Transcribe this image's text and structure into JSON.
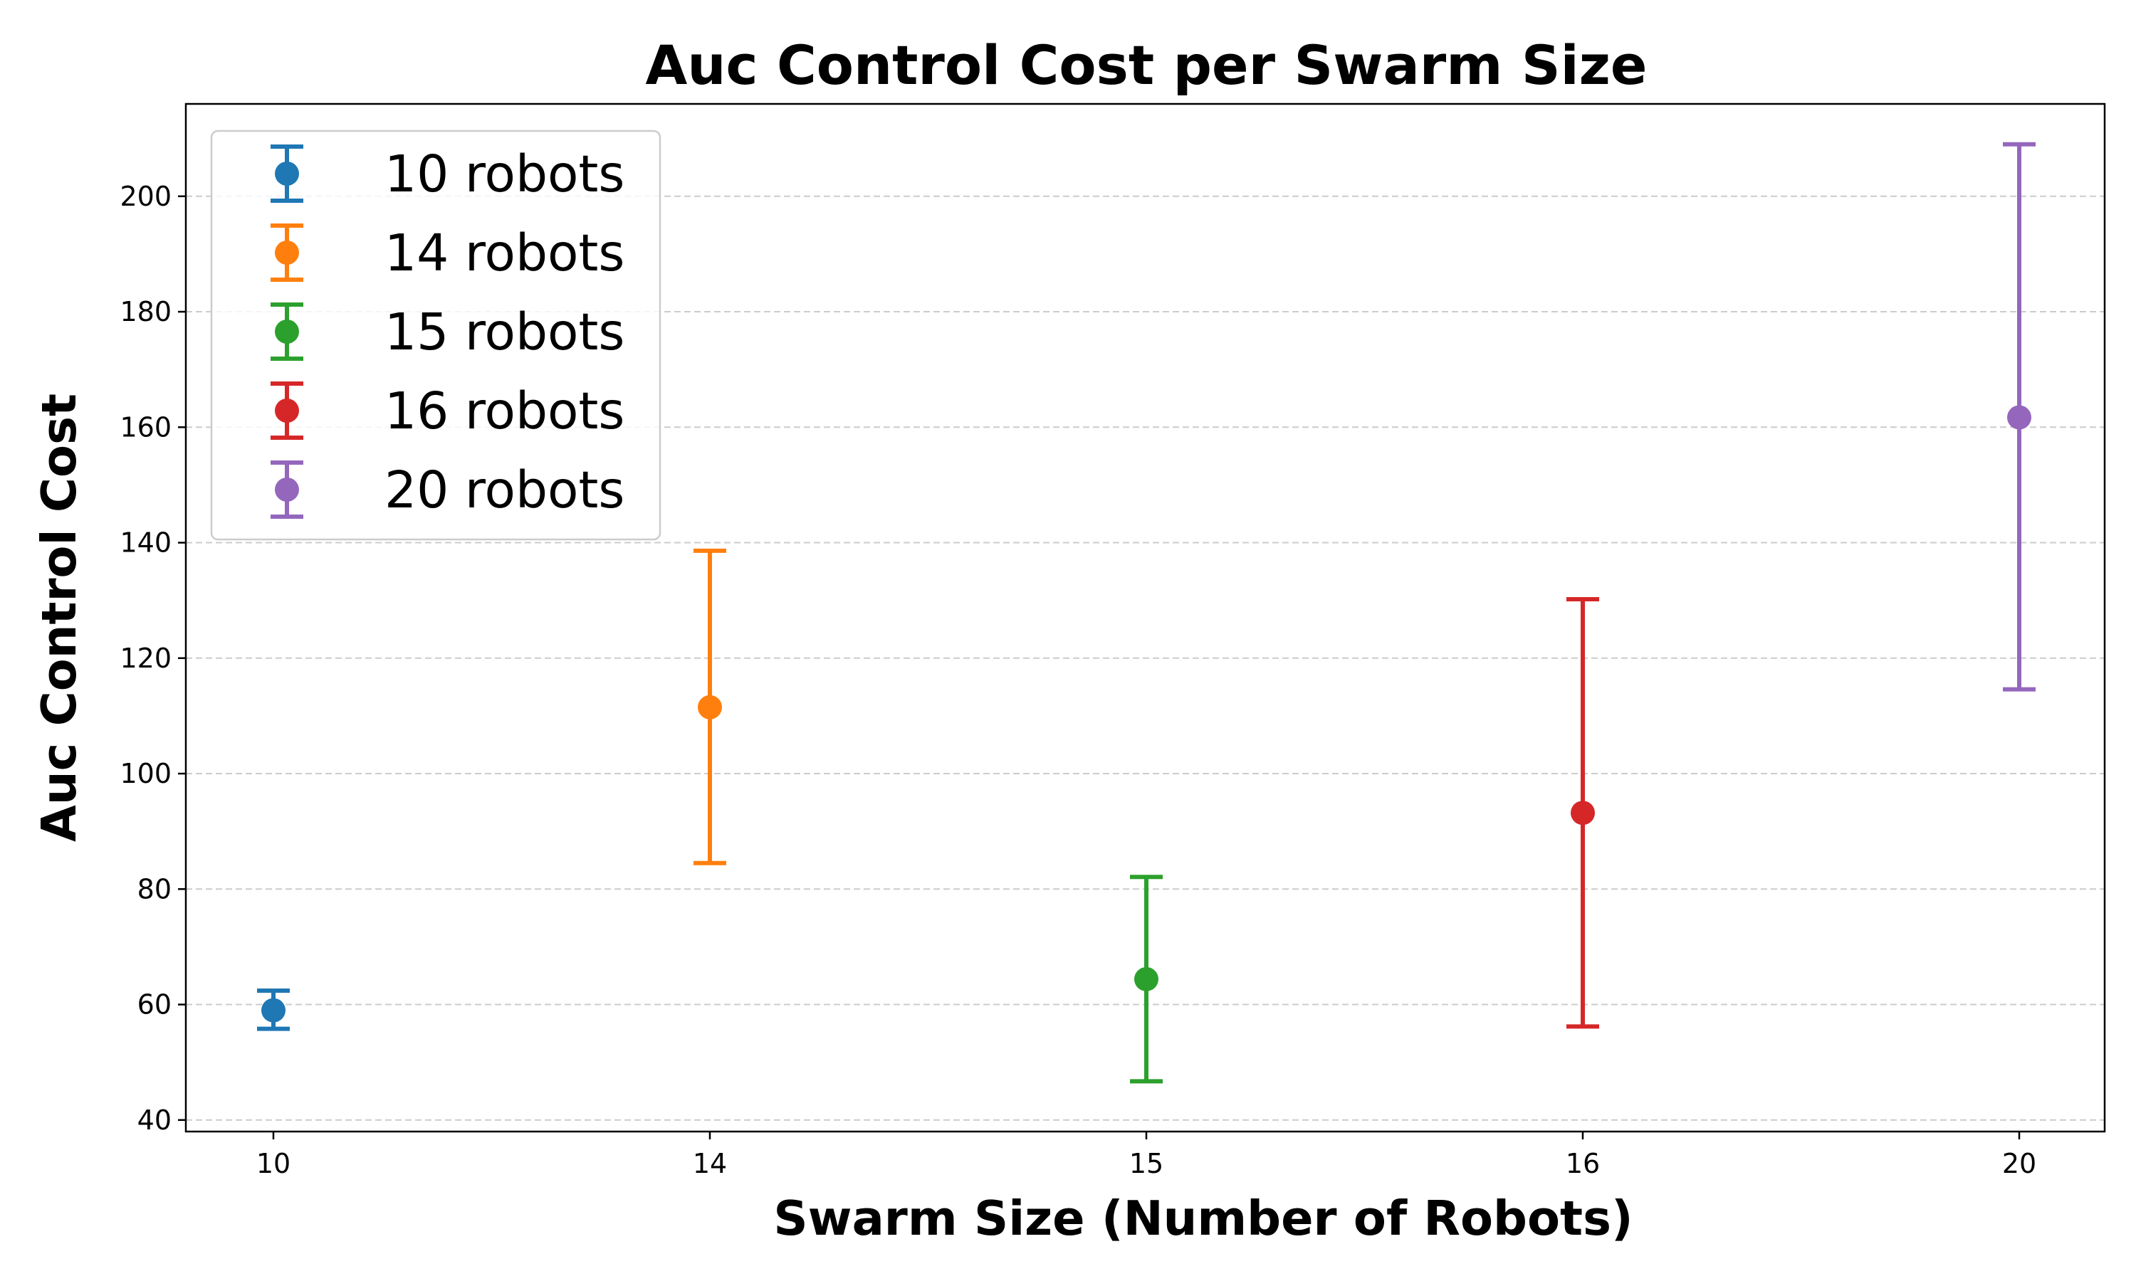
{
  "chart_data": {
    "type": "scatter",
    "title": "Auc Control Cost per Swarm Size",
    "xlabel": "Swarm Size (Number of Robots)",
    "ylabel": "Auc Control Cost",
    "categories": [
      "10",
      "14",
      "15",
      "16",
      "20"
    ],
    "ylim": [
      38,
      216
    ],
    "yticks": [
      40,
      60,
      80,
      100,
      120,
      140,
      160,
      180,
      200
    ],
    "grid": "y-dashed",
    "legend_position": "upper-left",
    "series": [
      {
        "name": "10 robots",
        "x": "10",
        "mean": 59,
        "err_low": 55.8,
        "err_high": 62.4,
        "color": "#1f77b4"
      },
      {
        "name": "14 robots",
        "x": "14",
        "mean": 111.5,
        "err_low": 84.5,
        "err_high": 138.6,
        "color": "#ff7f0e"
      },
      {
        "name": "15 robots",
        "x": "15",
        "mean": 64.4,
        "err_low": 46.7,
        "err_high": 82.1,
        "color": "#2ca02c"
      },
      {
        "name": "16 robots",
        "x": "16",
        "mean": 93.2,
        "err_low": 56.2,
        "err_high": 130.2,
        "color": "#d62728"
      },
      {
        "name": "20 robots",
        "x": "20",
        "mean": 161.7,
        "err_low": 114.6,
        "err_high": 209,
        "color": "#9467bd"
      }
    ]
  }
}
